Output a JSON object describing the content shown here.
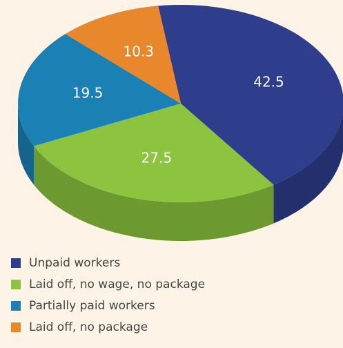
{
  "chart_data": {
    "type": "pie",
    "categories": [
      "Unpaid workers",
      "Laid off, no wage, no package",
      "Partially paid workers",
      "Laid off, no package"
    ],
    "values": [
      42.5,
      27.5,
      19.5,
      10.3
    ],
    "colors": [
      "#2e3d8c",
      "#8cc43f",
      "#1b80b4",
      "#e8872b"
    ],
    "legend": "bottom-left"
  }
}
